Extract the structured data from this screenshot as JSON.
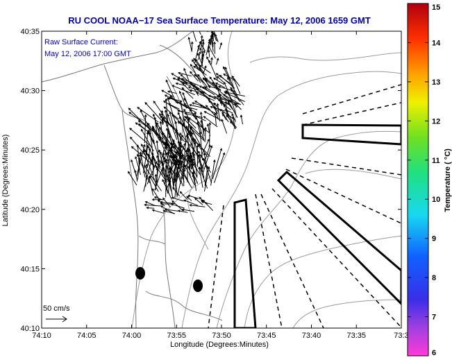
{
  "title": "RU COOL  NOAA−17  Sea Surface Temperature:  May 12, 2006 1659 GMT",
  "annotation": {
    "line1": "Raw Surface Current:",
    "line2": "May 12, 2006 17:00 GMT"
  },
  "axes": {
    "xlabel": "Longitude (Degrees:Minutes)",
    "ylabel": "Latitude (Degrees:Minutes)",
    "xticks": [
      "74:10",
      "74:05",
      "74:00",
      "73:55",
      "73:50",
      "73:45",
      "73:40",
      "73:35",
      "73:3"
    ],
    "yticks": [
      "40:35",
      "40:30",
      "40:25",
      "40:20",
      "40:15",
      "40:10"
    ]
  },
  "colorbar": {
    "label": "Temperature ( °C)",
    "ticks": [
      "15",
      "14",
      "13",
      "12",
      "11",
      "10",
      "9",
      "8",
      "7",
      "6"
    ],
    "min": 6,
    "max": 15
  },
  "scale_label": "50 cm/s",
  "colors": {
    "title": "#0000a8",
    "annotation": "#0000c8",
    "land": "#ffffff",
    "isobath": "#9a9a9a",
    "coast": "#777777"
  }
}
